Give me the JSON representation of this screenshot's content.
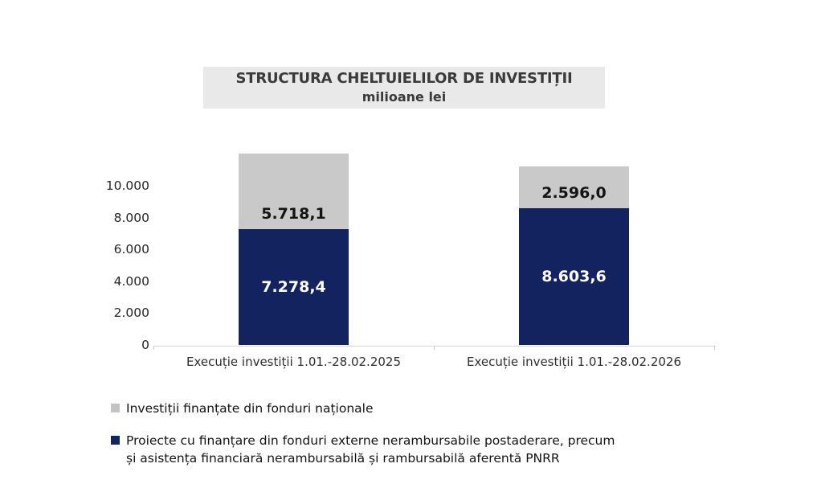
{
  "chart_data": {
    "type": "bar",
    "stacked": true,
    "title": "STRUCTURA CHELTUIELILOR DE INVESTIȚII",
    "subtitle": "milioane lei",
    "categories": [
      "Execuție investiții 1.01.-28.02.2025",
      "Execuție investiții 1.01.-28.02.2026"
    ],
    "series": [
      {
        "name": "Proiecte cu finanțare din fonduri externe nerambursabile postaderare, precum și asistența financiară nerambursabilă și rambursabilă aferentă PNRR",
        "color": "#13235f",
        "values": [
          7278.4,
          8603.6
        ],
        "value_labels": [
          "7.278,4",
          "8.603,6"
        ],
        "label_color": "#ffffff",
        "label_align": "middle"
      },
      {
        "name": "Investiții finanțate din fonduri naționale",
        "color": "#c9c9c9",
        "values": [
          5718.1,
          2596.0
        ],
        "value_labels": [
          "5.718,1",
          "2.596,0"
        ],
        "label_color": "#141414",
        "label_align": "bottom"
      }
    ],
    "y_axis": {
      "min": 0,
      "max": 12000,
      "gridlines": false,
      "ticks": [
        {
          "value": 10000,
          "label": "10.000"
        },
        {
          "value": 8000,
          "label": "8.000"
        },
        {
          "value": 6000,
          "label": "6.000"
        },
        {
          "value": 4000,
          "label": "4.000"
        },
        {
          "value": 2000,
          "label": "2.000"
        },
        {
          "value": 0,
          "label": "0"
        }
      ]
    },
    "legend": {
      "position": "bottom-left",
      "items": [
        {
          "marker_color": "#c3c3c3",
          "lines": [
            "Investiții finanțate din fonduri naționale"
          ]
        },
        {
          "marker_color": "#13235f",
          "lines": [
            "Proiecte cu finanțare din fonduri externe nerambursabile postaderare, precum",
            "și asistența financiară nerambursabilă și rambursabilă aferentă PNRR"
          ]
        }
      ]
    }
  }
}
